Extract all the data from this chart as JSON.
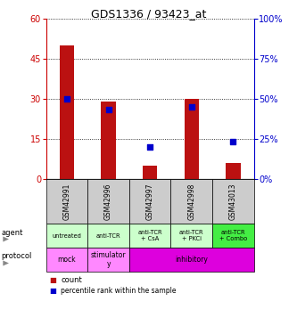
{
  "title": "GDS1336 / 93423_at",
  "samples": [
    "GSM42991",
    "GSM42996",
    "GSM42997",
    "GSM42998",
    "GSM43013"
  ],
  "counts": [
    50,
    29,
    5,
    30,
    6
  ],
  "percentile_ranks": [
    50,
    43,
    20,
    45,
    23
  ],
  "ylim_left": [
    0,
    60
  ],
  "ylim_right": [
    0,
    100
  ],
  "yticks_left": [
    0,
    15,
    30,
    45,
    60
  ],
  "yticks_right": [
    0,
    25,
    50,
    75,
    100
  ],
  "agent_labels": [
    "untreated",
    "anti-TCR",
    "anti-TCR\n+ CsA",
    "anti-TCR\n+ PKCi",
    "anti-TCR\n+ Combo"
  ],
  "protocol_spans": [
    {
      "label": "mock",
      "start": 0,
      "end": 1
    },
    {
      "label": "stimulator\ny",
      "start": 1,
      "end": 2
    },
    {
      "label": "inhibitory",
      "start": 2,
      "end": 5
    }
  ],
  "bar_color": "#bb1111",
  "dot_color": "#0000cc",
  "sample_bg_color": "#cccccc",
  "agent_bg_colors": [
    "#ccffcc",
    "#ccffcc",
    "#ccffcc",
    "#ccffcc",
    "#44ee44"
  ],
  "protocol_bg_colors": [
    "#ff88ff",
    "#ff88ff",
    "#dd00dd"
  ],
  "legend_count_color": "#bb1111",
  "legend_dot_color": "#0000cc",
  "left_axis_color": "#cc0000",
  "right_axis_color": "#0000cc"
}
